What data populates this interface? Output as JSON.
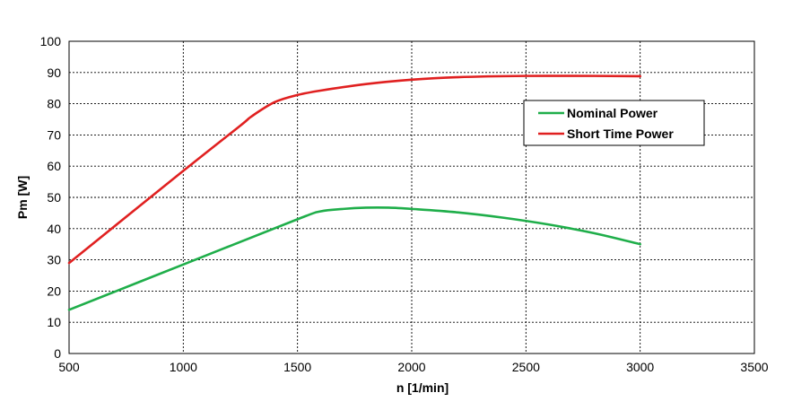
{
  "chart_data": {
    "type": "line",
    "title": "",
    "xlabel": "n [1/min]",
    "ylabel": "Pm [W]",
    "xlim": [
      500,
      3500
    ],
    "ylim": [
      0,
      100
    ],
    "xticks": [
      500,
      1000,
      1500,
      2000,
      2500,
      3000,
      3500
    ],
    "yticks": [
      0,
      10,
      20,
      30,
      40,
      50,
      60,
      70,
      80,
      90,
      100
    ],
    "grid": true,
    "legend_position": "top-right",
    "series": [
      {
        "name": "Nominal Power",
        "color": "#1fae4a",
        "x": [
          500,
          1000,
          1500,
          1600,
          1700,
          1800,
          1900,
          2000,
          2200,
          2400,
          2600,
          2800,
          3000
        ],
        "y": [
          14,
          28.5,
          43,
          45.5,
          46.3,
          46.7,
          46.7,
          46.3,
          45.2,
          43.5,
          41.3,
          38.5,
          35
        ]
      },
      {
        "name": "Short Time Power",
        "color": "#e02020",
        "x": [
          500,
          1000,
          1250,
          1300,
          1400,
          1500,
          1600,
          1800,
          2000,
          2200,
          2500,
          2800,
          3000
        ],
        "y": [
          29,
          58.5,
          73,
          76,
          80.5,
          82.8,
          84.2,
          86.3,
          87.7,
          88.5,
          88.9,
          88.9,
          88.8
        ]
      }
    ]
  }
}
